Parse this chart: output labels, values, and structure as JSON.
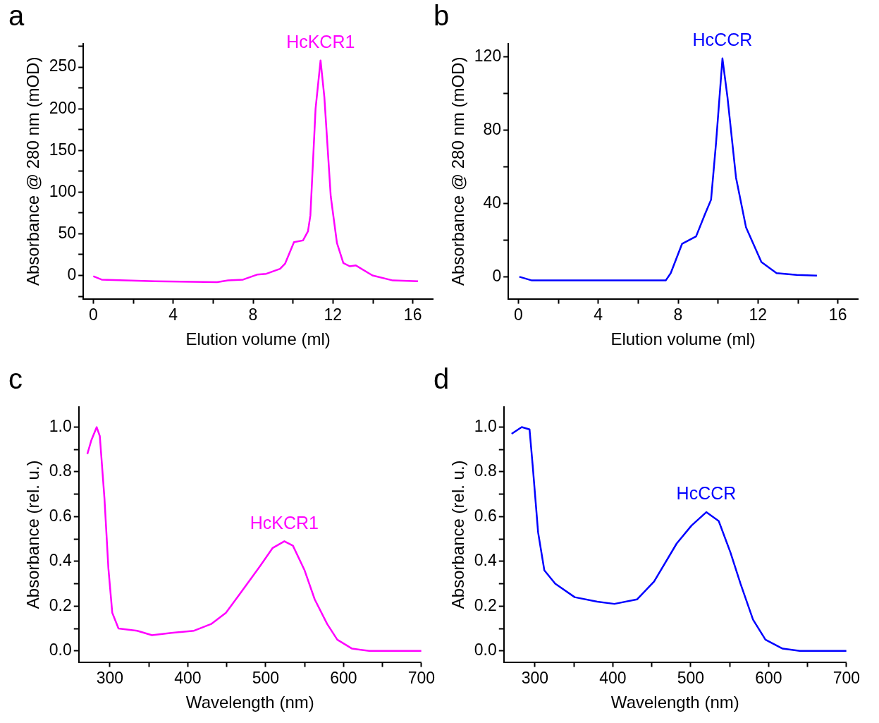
{
  "chart_data": [
    {
      "type": "line",
      "annotations": [
        "a"
      ],
      "xlabel": "Elution volume (ml)",
      "ylabel": "Absorbance @ 280 nm (mOD)",
      "xlim": [
        -0.5,
        17
      ],
      "ylim": [
        -28,
        278
      ],
      "xticks": [
        0,
        {
          "value": 2,
          "label": null
        },
        4,
        {
          "value": 6,
          "label": null
        },
        8,
        {
          "value": 10,
          "label": null
        },
        12,
        {
          "value": 14,
          "label": null
        },
        16
      ],
      "yticks": [
        {
          "value": -25,
          "label": null
        },
        0,
        {
          "value": 25,
          "label": null
        },
        50,
        {
          "value": 75,
          "label": null
        },
        100,
        {
          "value": 125,
          "label": null
        },
        150,
        {
          "value": 175,
          "label": null
        },
        200,
        {
          "value": 225,
          "label": null
        },
        250,
        {
          "value": 275,
          "label": null
        }
      ],
      "series": [
        {
          "name": "HcKCR1",
          "color": "#ff00ff",
          "x": [
            0,
            0.42,
            3.08,
            6.2,
            6.75,
            7.5,
            8.2,
            8.66,
            9.35,
            9.6,
            10.05,
            10.5,
            10.75,
            10.87,
            11.13,
            11.38,
            11.57,
            11.89,
            12.2,
            12.52,
            12.84,
            13.15,
            13.98,
            15,
            16.26
          ],
          "values": [
            -1,
            -5,
            -7,
            -8,
            -6,
            -5,
            1,
            2,
            8,
            14,
            40,
            42,
            53,
            72,
            200,
            258,
            214,
            95,
            39,
            15,
            11,
            12,
            0,
            -6,
            -7
          ]
        }
      ]
    },
    {
      "type": "line",
      "annotations": [
        "b"
      ],
      "xlabel": "Elution volume (ml)",
      "ylabel": "Absorbance @ 280 nm (mOD)",
      "xlim": [
        -0.5,
        17
      ],
      "ylim": [
        -12,
        127
      ],
      "xticks": [
        0,
        {
          "value": 2,
          "label": null
        },
        4,
        {
          "value": 6,
          "label": null
        },
        8,
        {
          "value": 10,
          "label": null
        },
        12,
        {
          "value": 14,
          "label": null
        },
        16
      ],
      "yticks": [
        0,
        {
          "value": 20,
          "label": null
        },
        40,
        {
          "value": 60,
          "label": null
        },
        80,
        {
          "value": 100,
          "label": null
        },
        120
      ],
      "series": [
        {
          "name": "HcCCR",
          "color": "#0000ff",
          "x": [
            0.05,
            0.68,
            1.3,
            7.38,
            7.63,
            8.2,
            8.9,
            9.34,
            9.65,
            9.9,
            10.22,
            10.47,
            10.9,
            11.4,
            12.17,
            12.93,
            13.94,
            14.95
          ],
          "values": [
            0,
            -2,
            -2,
            -2,
            2,
            18,
            22,
            34,
            42,
            73,
            119,
            98,
            54,
            27,
            8,
            2,
            1,
            0.6
          ]
        }
      ]
    },
    {
      "type": "line",
      "annotations": [
        "c"
      ],
      "xlabel": "Wavelength (nm)",
      "ylabel": "Absorbance (rel. u.)",
      "xlim": [
        260,
        700
      ],
      "ylim": [
        -0.05,
        1.09
      ],
      "xticks": [
        300,
        {
          "value": 350,
          "label": null
        },
        400,
        {
          "value": 450,
          "label": null
        },
        500,
        {
          "value": 550,
          "label": null
        },
        600,
        {
          "value": 650,
          "label": null
        },
        700
      ],
      "yticks": [
        {
          "value": 0,
          "label": "0.0"
        },
        {
          "value": 0.1,
          "label": null
        },
        {
          "value": 0.2,
          "label": "0.2"
        },
        {
          "value": 0.3,
          "label": null
        },
        {
          "value": 0.4,
          "label": "0.4"
        },
        {
          "value": 0.5,
          "label": null
        },
        {
          "value": 0.6,
          "label": "0.6"
        },
        {
          "value": 0.7,
          "label": null
        },
        {
          "value": 0.8,
          "label": "0.8"
        },
        {
          "value": 0.9,
          "label": null
        },
        {
          "value": 1,
          "label": "1.0"
        }
      ],
      "series": [
        {
          "name": "HcKCR1",
          "color": "#ff00ff",
          "x": [
            271,
            276,
            283,
            287,
            293,
            298,
            303,
            311,
            335,
            354,
            379,
            408,
            430,
            449,
            468,
            493,
            509,
            524,
            535,
            550,
            563,
            579,
            592,
            611,
            633,
            700
          ],
          "values": [
            0.88,
            0.94,
            1.0,
            0.96,
            0.68,
            0.37,
            0.17,
            0.1,
            0.09,
            0.07,
            0.08,
            0.09,
            0.12,
            0.17,
            0.26,
            0.38,
            0.46,
            0.49,
            0.47,
            0.36,
            0.23,
            0.12,
            0.05,
            0.01,
            0,
            0
          ]
        }
      ]
    },
    {
      "type": "line",
      "annotations": [
        "d"
      ],
      "xlabel": "Wavelength (nm)",
      "ylabel": "Absorbance (rel. u.)",
      "xlim": [
        260,
        700
      ],
      "ylim": [
        -0.05,
        1.09
      ],
      "xticks": [
        300,
        {
          "value": 350,
          "label": null
        },
        400,
        {
          "value": 450,
          "label": null
        },
        500,
        {
          "value": 550,
          "label": null
        },
        600,
        {
          "value": 650,
          "label": null
        },
        700
      ],
      "yticks": [
        {
          "value": 0,
          "label": "0.0"
        },
        {
          "value": 0.1,
          "label": null
        },
        {
          "value": 0.2,
          "label": "0.2"
        },
        {
          "value": 0.3,
          "label": null
        },
        {
          "value": 0.4,
          "label": "0.4"
        },
        {
          "value": 0.5,
          "label": null
        },
        {
          "value": 0.6,
          "label": "0.6"
        },
        {
          "value": 0.7,
          "label": null
        },
        {
          "value": 0.8,
          "label": "0.8"
        },
        {
          "value": 0.9,
          "label": null
        },
        {
          "value": 1,
          "label": "1.0"
        }
      ],
      "series": [
        {
          "name": "HcCCR",
          "color": "#0000ff",
          "x": [
            270,
            283,
            293,
            297,
            304,
            312,
            326,
            351,
            380,
            402,
            431,
            453,
            482,
            501,
            520,
            536,
            551,
            564,
            580,
            596,
            618,
            640,
            700
          ],
          "values": [
            0.97,
            1.0,
            0.99,
            0.83,
            0.53,
            0.36,
            0.3,
            0.24,
            0.22,
            0.21,
            0.23,
            0.31,
            0.48,
            0.56,
            0.62,
            0.58,
            0.44,
            0.3,
            0.14,
            0.05,
            0.01,
            0,
            0
          ]
        }
      ]
    }
  ]
}
